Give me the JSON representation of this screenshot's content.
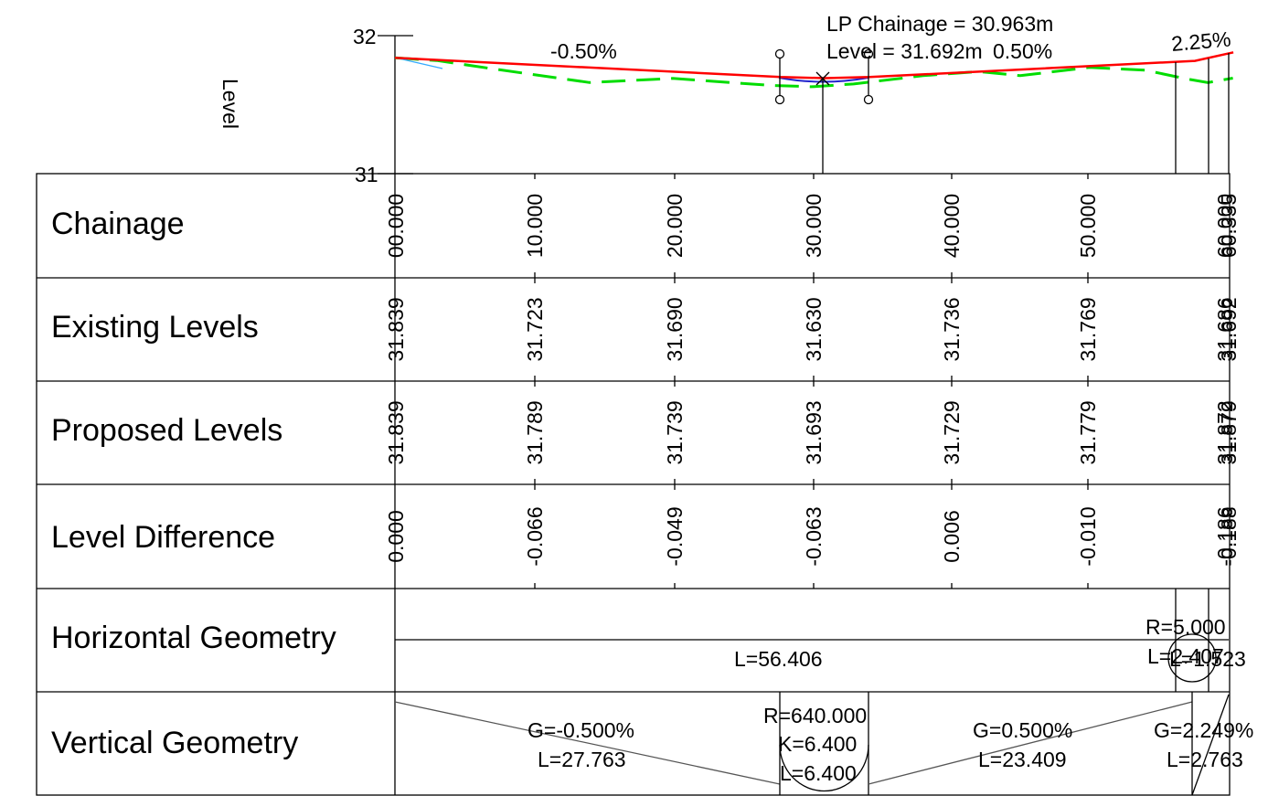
{
  "profile": {
    "axis_label": "Level",
    "y_ticks": [
      "32",
      "31"
    ],
    "y_range": [
      31,
      32
    ],
    "x_range": [
      0,
      60
    ],
    "grade_labels": [
      "-0.50%",
      "0.50%",
      "2.25%"
    ],
    "lp_annotation": {
      "chainage_text": "LP Chainage = 30.963m",
      "level_text": "Level = 31.692m"
    },
    "colors": {
      "proposed": "#ff0000",
      "existing": "#00dd00",
      "vertical_curve": "#2222cc",
      "approach": "#33aaff"
    },
    "proposed_profile": {
      "chainages": [
        0,
        27.763,
        30.963,
        34.163,
        57.572,
        60.335
      ],
      "levels": [
        31.839,
        31.7,
        31.692,
        31.7,
        31.817,
        31.879
      ]
    },
    "existing_profile": {
      "chainages": [
        0,
        3,
        7,
        14,
        20,
        27,
        30,
        33,
        38,
        42,
        45,
        50,
        54,
        57,
        58.5,
        60.3
      ],
      "levels": [
        31.839,
        31.82,
        31.76,
        31.66,
        31.69,
        31.64,
        31.63,
        31.65,
        31.71,
        31.74,
        31.71,
        31.77,
        31.75,
        31.686,
        31.66,
        31.692
      ]
    }
  },
  "table": {
    "row_labels": [
      "Chainage",
      "Existing Levels",
      "Proposed Levels",
      "Level Difference",
      "Horizontal Geometry",
      "Vertical Geometry"
    ],
    "columns": [
      {
        "chainage": "00.000",
        "existing": "31.839",
        "proposed": "31.839",
        "difference": "0.000"
      },
      {
        "chainage": "10.000",
        "existing": "31.723",
        "proposed": "31.789",
        "difference": "-0.066"
      },
      {
        "chainage": "20.000",
        "existing": "31.690",
        "proposed": "31.739",
        "difference": "-0.049"
      },
      {
        "chainage": "30.000",
        "existing": "31.630",
        "proposed": "31.693",
        "difference": "-0.063"
      },
      {
        "chainage": "40.000",
        "existing": "31.736",
        "proposed": "31.729",
        "difference": "0.006"
      },
      {
        "chainage": "50.000",
        "existing": "31.769",
        "proposed": "31.779",
        "difference": "-0.010"
      }
    ],
    "end_columns": [
      {
        "chainage": "60.000",
        "existing": "31.686",
        "proposed": "31.872",
        "difference": "-0.186"
      },
      {
        "chainage": "60.335",
        "existing": "31.692",
        "proposed": "31.879",
        "difference": "-0.188"
      }
    ],
    "horizontal_geometry": {
      "straight_length": "L=56.406",
      "curve_radius": "R=5.000",
      "curve_length_1": "L=2.407",
      "curve_length_2": "L=1.523"
    },
    "vertical_geometry": {
      "grade1": {
        "grade": "G=-0.500%",
        "length": "L=27.763"
      },
      "curve": {
        "radius": "R=640.000",
        "k": "K=6.400",
        "length": "L=6.400"
      },
      "grade2": {
        "grade": "G=0.500%",
        "length": "L=23.409"
      },
      "grade3": {
        "grade": "G=2.249%",
        "length": "L=2.763"
      }
    }
  }
}
